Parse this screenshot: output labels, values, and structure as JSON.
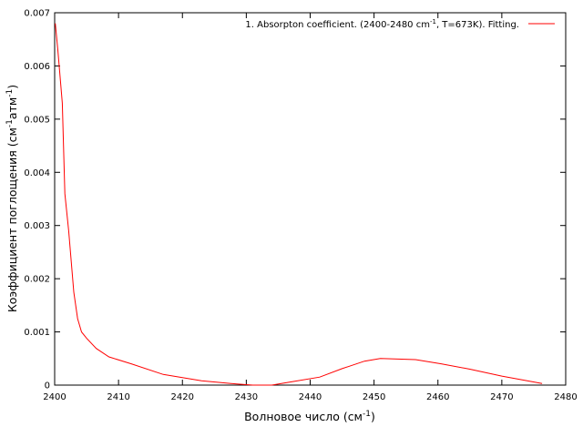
{
  "chart_data": {
    "type": "line",
    "title": "",
    "xlabel": "Волновое число (см",
    "xlabel_sup": "-1",
    "xlabel_end": ")",
    "ylabel": "Коэффициент поглощения (см",
    "ylabel_sup1": "-1",
    "ylabel_mid": "атм",
    "ylabel_sup2": "-1",
    "ylabel_end": ")",
    "xlim": [
      2400,
      2480
    ],
    "ylim": [
      0,
      0.007
    ],
    "x_ticks": [
      2400,
      2410,
      2420,
      2430,
      2440,
      2450,
      2460,
      2470,
      2480
    ],
    "x_tick_labels": [
      "2400",
      "2410",
      "2420",
      "2430",
      "2440",
      "2450",
      "2460",
      "2470",
      "2480"
    ],
    "y_ticks": [
      0,
      0.001,
      0.002,
      0.003,
      0.004,
      0.005,
      0.006,
      0.007
    ],
    "y_tick_labels": [
      "0",
      "0.001",
      "0.002",
      "0.003",
      "0.004",
      "0.005",
      "0.006",
      "0.007"
    ],
    "grid": false,
    "legend_position": "top-right",
    "series": [
      {
        "name_part1": "1. Absorpton coefficient. (2400-2480 cm",
        "name_sup": "-1",
        "name_part2": ", T=673K). Fitting.",
        "color": "#ff0000",
        "x": [
          2400.1,
          2400.5,
          2401.2,
          2401.6,
          2402.2,
          2403.0,
          2403.6,
          2404.2,
          2405.0,
          2406.5,
          2408.5,
          2412.0,
          2417.0,
          2423.0,
          2428.5,
          2431.0,
          2434.0,
          2437.5,
          2441.5,
          2445.0,
          2448.5,
          2451.0,
          2456.5,
          2460.5,
          2465.0,
          2470.0,
          2476.3
        ],
        "y": [
          0.0068,
          0.0063,
          0.0053,
          0.0036,
          0.0029,
          0.00175,
          0.00125,
          0.001,
          0.00088,
          0.00069,
          0.00053,
          0.0004,
          0.0002,
          8e-05,
          2e-05,
          0.0,
          0.0,
          7e-05,
          0.00015,
          0.00031,
          0.00045,
          0.0005,
          0.00048,
          0.0004,
          0.0003,
          0.00017,
          3e-05
        ]
      }
    ]
  }
}
